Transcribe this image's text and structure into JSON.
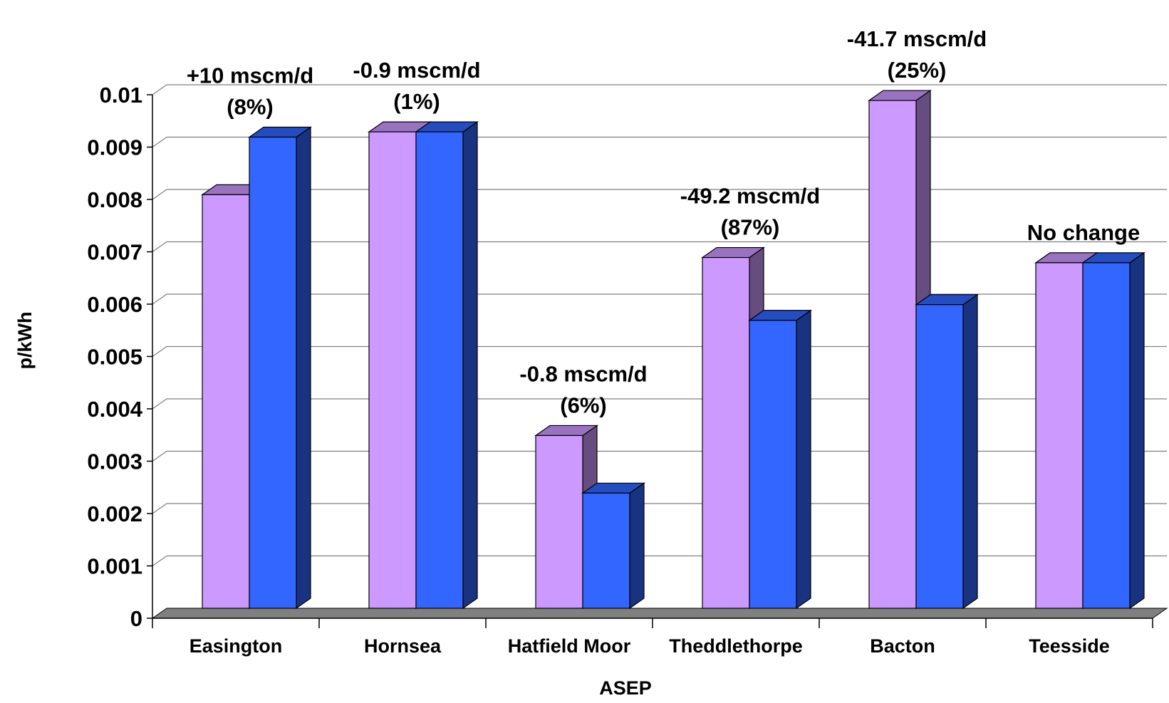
{
  "chart_data": {
    "type": "bar",
    "title": "",
    "xlabel": "ASEP",
    "ylabel": "p/kWh",
    "ylim": [
      0,
      0.01
    ],
    "y_ticks": [
      "0",
      "0.001",
      "0.002",
      "0.003",
      "0.004",
      "0.005",
      "0.006",
      "0.007",
      "0.008",
      "0.009",
      "0.01"
    ],
    "grid": true,
    "categories": [
      "Easington",
      "Hornsea",
      "Hatfield Moor",
      "Theddlethorpe",
      "Bacton",
      "Teesside"
    ],
    "series": [
      {
        "values": [
          0.0079,
          0.0091,
          0.0033,
          0.0067,
          0.0097,
          0.0066
        ],
        "color": "#CC99FF"
      },
      {
        "values": [
          0.009,
          0.0091,
          0.0022,
          0.0055,
          0.0058,
          0.0066
        ],
        "color": "#3366FF"
      }
    ],
    "annotations": [
      {
        "category": "Easington",
        "lines": [
          "+10 mscm/d",
          "(8%)"
        ]
      },
      {
        "category": "Hornsea",
        "lines": [
          "-0.9 mscm/d",
          "(1%)"
        ]
      },
      {
        "category": "Hatfield Moor",
        "lines": [
          "-0.8 mscm/d",
          "(6%)"
        ]
      },
      {
        "category": "Theddlethorpe",
        "lines": [
          "-49.2 mscm/d",
          "(87%)"
        ]
      },
      {
        "category": "Bacton",
        "lines": [
          "-41.7 mscm/d",
          "(25%)"
        ]
      },
      {
        "category": "Teesside",
        "lines": [
          "No change"
        ]
      }
    ],
    "colors": {
      "floor": "#808080",
      "gridline": "#808080",
      "purple_side": "#664D80",
      "purple_top": "#9973BF",
      "blue_side": "#1A3380",
      "blue_top": "#264DBF"
    }
  }
}
